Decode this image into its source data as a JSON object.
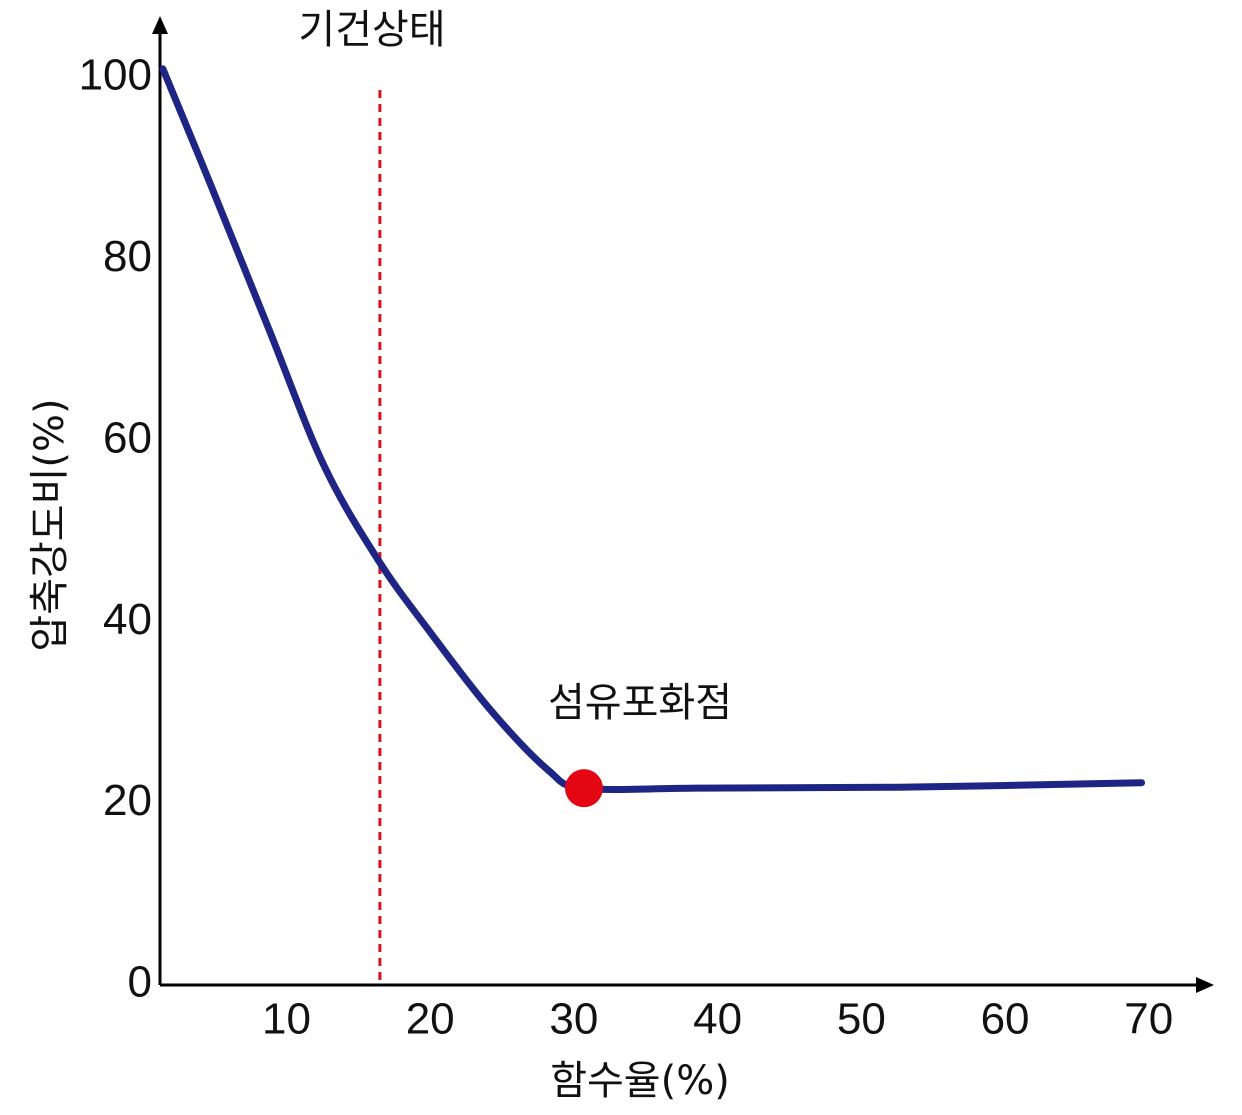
{
  "chart_data": {
    "type": "line",
    "x_label": "함수율(%)",
    "y_label": "압축강도비(%)",
    "x": [
      1.4,
      4.6,
      8.8,
      12.6,
      16.4,
      19.9,
      24.1,
      28.2,
      30.7,
      38.7,
      52.6,
      69.5
    ],
    "values": [
      101,
      88.7,
      72.2,
      57.3,
      46.8,
      39.1,
      30.5,
      23.7,
      21.7,
      21.7,
      21.8,
      22.3
    ],
    "color": "#1f2585",
    "xlim": [
      1.2,
      74.4
    ],
    "ylim": [
      0,
      106.6
    ],
    "xticks": [
      10,
      20,
      30,
      40,
      50,
      60,
      70
    ],
    "yticks": [
      0,
      20,
      40,
      60,
      80,
      100
    ],
    "vline": {
      "x": 16.5,
      "label": "기건상태",
      "color": "#d7141e"
    },
    "point": {
      "x": 30.7,
      "y": 21.7,
      "label": "섬유포화점",
      "color": "#e30613"
    }
  }
}
